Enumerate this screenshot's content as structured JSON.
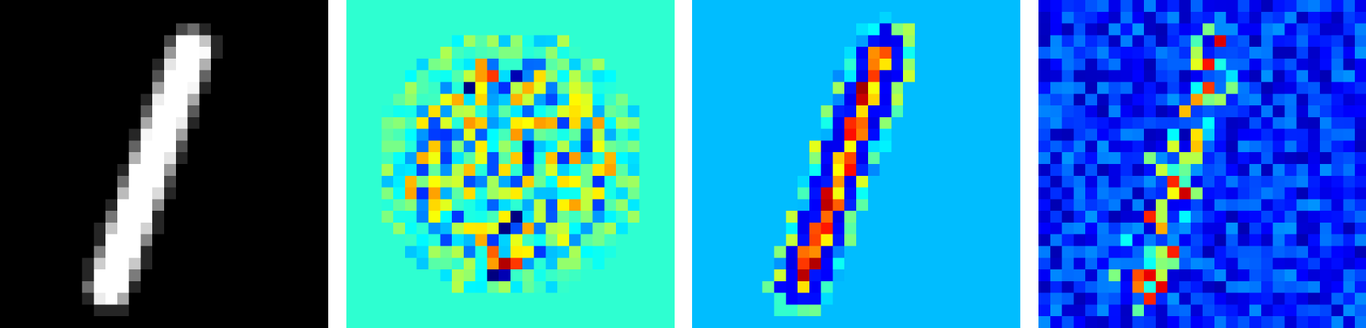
{
  "figure": {
    "grid_size": 28,
    "panels": [
      {
        "id": "input-digit",
        "colormap": "gray",
        "background": "#000000"
      },
      {
        "id": "saliency-map",
        "colormap": "jet",
        "background": "#1EFFD9"
      },
      {
        "id": "gradient-x-input-map",
        "colormap": "jet",
        "background": "#0066FF"
      },
      {
        "id": "noise-attribution-map",
        "colormap": "jet",
        "background": "#00008F"
      }
    ]
  }
}
